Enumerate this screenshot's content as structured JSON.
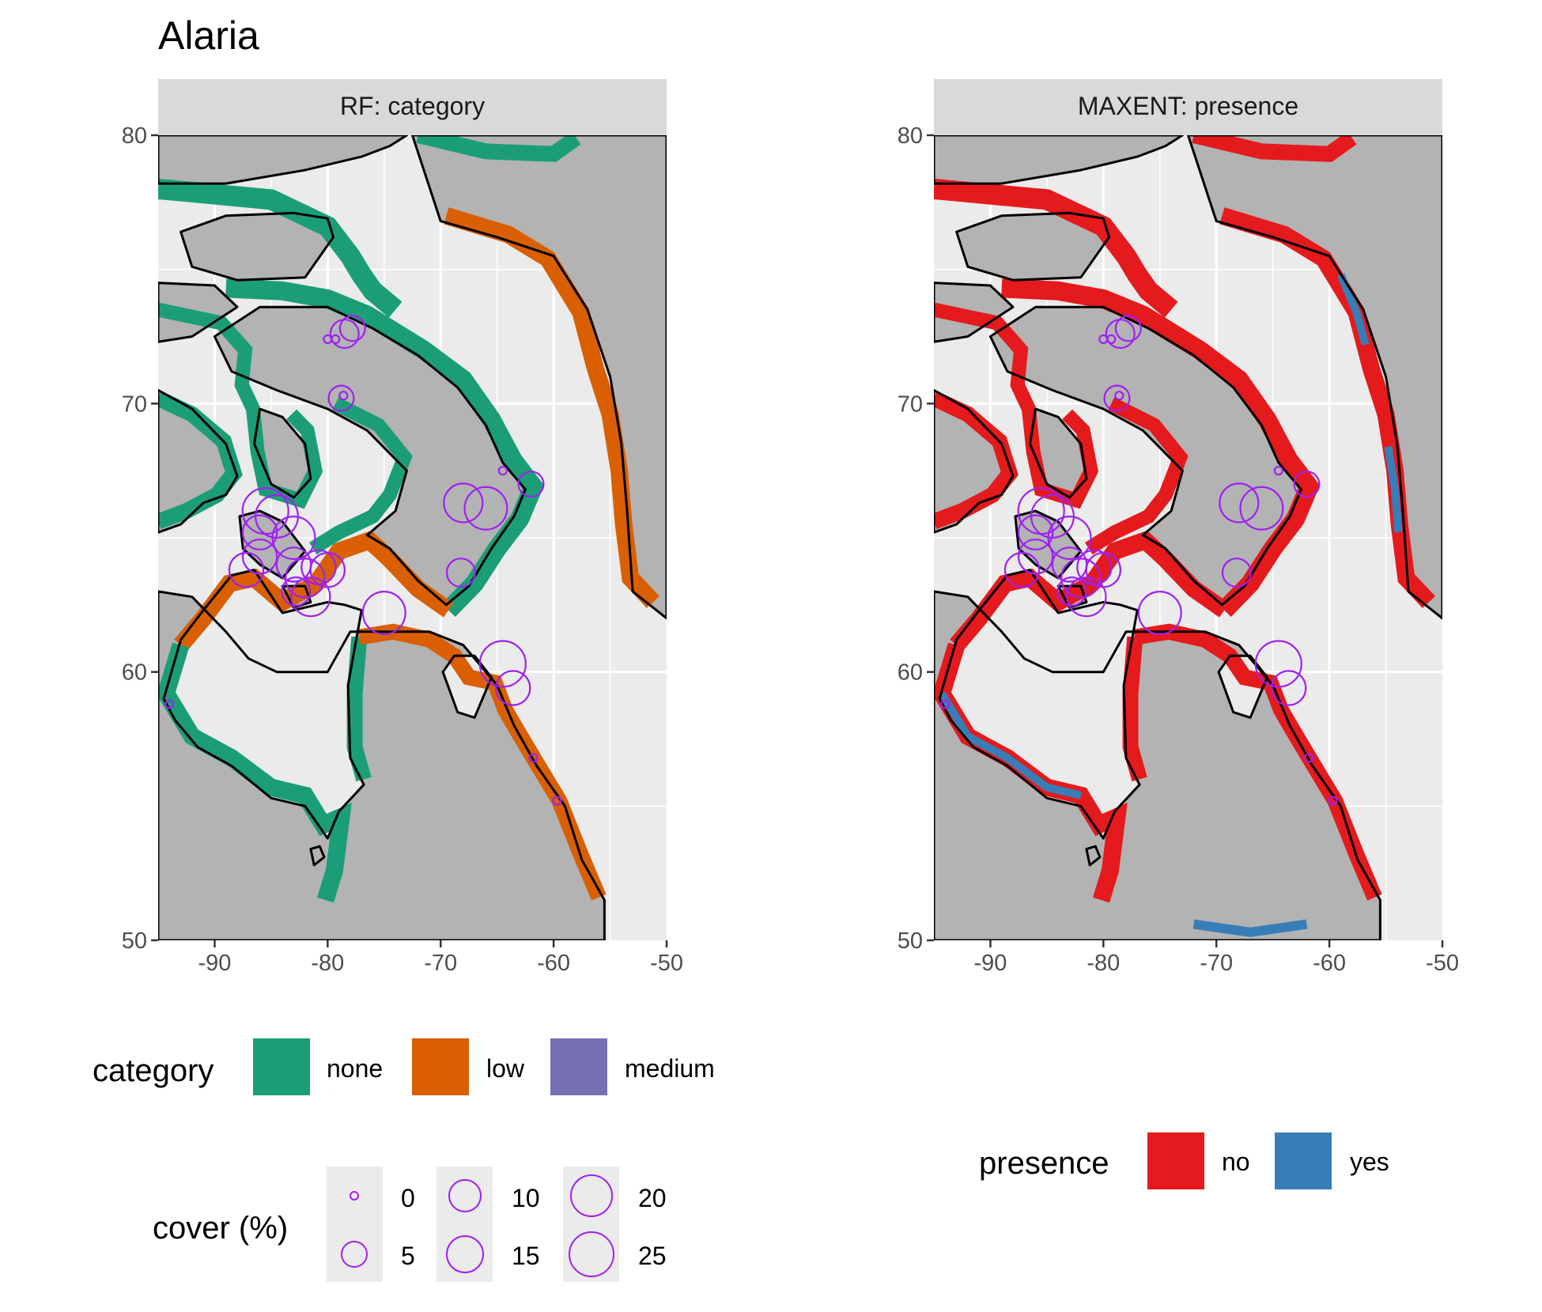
{
  "title": "Alaria",
  "panels": [
    {
      "strip_label": "RF: category",
      "fill_variable": "category"
    },
    {
      "strip_label": "MAXENT: presence",
      "fill_variable": "presence"
    }
  ],
  "axes": {
    "x_ticks": [
      "-90",
      "-80",
      "-70",
      "-60",
      "-50"
    ],
    "y_ticks": [
      "80",
      "70",
      "60",
      "50"
    ],
    "xlim": [
      -95,
      -50
    ],
    "ylim": [
      50,
      80
    ]
  },
  "legend_category": {
    "title": "category",
    "items": [
      {
        "label": "none",
        "color": "#1b9e77"
      },
      {
        "label": "low",
        "color": "#d95f02"
      },
      {
        "label": "medium",
        "color": "#7570b3"
      }
    ]
  },
  "legend_presence": {
    "title": "presence",
    "items": [
      {
        "label": "no",
        "color": "#e41a1c"
      },
      {
        "label": "yes",
        "color": "#377eb8"
      }
    ]
  },
  "legend_cover": {
    "title": "cover (%)",
    "items": [
      {
        "label": "0",
        "value": 0
      },
      {
        "label": "5",
        "value": 5
      },
      {
        "label": "10",
        "value": 10
      },
      {
        "label": "15",
        "value": 15
      },
      {
        "label": "20",
        "value": 20
      },
      {
        "label": "25",
        "value": 25
      }
    ]
  },
  "colors": {
    "land": "#b3b3b3",
    "panel_bg": "#ebebeb",
    "strip_bg": "#d9d9d9",
    "grid": "#ffffff",
    "circle": "#a020f0"
  },
  "chart_data": {
    "type": "scatter",
    "x_label": "",
    "y_label": "",
    "sites": [
      {
        "lon": -78.5,
        "lat": 72.6,
        "cover": 5
      },
      {
        "lon": -77.8,
        "lat": 72.8,
        "cover": 3
      },
      {
        "lon": -79.3,
        "lat": 72.4,
        "cover": 0
      },
      {
        "lon": -80.0,
        "lat": 72.4,
        "cover": 0
      },
      {
        "lon": -78.8,
        "lat": 70.2,
        "cover": 3
      },
      {
        "lon": -78.6,
        "lat": 70.3,
        "cover": 0
      },
      {
        "lon": -85.5,
        "lat": 66.0,
        "cover": 25
      },
      {
        "lon": -84.5,
        "lat": 65.8,
        "cover": 20
      },
      {
        "lon": -86.0,
        "lat": 65.2,
        "cover": 10
      },
      {
        "lon": -83.0,
        "lat": 65.0,
        "cover": 20
      },
      {
        "lon": -87.2,
        "lat": 63.8,
        "cover": 10
      },
      {
        "lon": -86.0,
        "lat": 64.3,
        "cover": 10
      },
      {
        "lon": -83.0,
        "lat": 64.0,
        "cover": 10
      },
      {
        "lon": -82.0,
        "lat": 63.5,
        "cover": 15
      },
      {
        "lon": -81.5,
        "lat": 62.8,
        "cover": 15
      },
      {
        "lon": -80.8,
        "lat": 63.9,
        "cover": 10
      },
      {
        "lon": -80.0,
        "lat": 63.8,
        "cover": 10
      },
      {
        "lon": -82.8,
        "lat": 63.0,
        "cover": 5
      },
      {
        "lon": -75.0,
        "lat": 62.2,
        "cover": 20
      },
      {
        "lon": -68.0,
        "lat": 66.3,
        "cover": 15
      },
      {
        "lon": -66.0,
        "lat": 66.1,
        "cover": 20
      },
      {
        "lon": -68.2,
        "lat": 63.7,
        "cover": 5
      },
      {
        "lon": -64.5,
        "lat": 67.5,
        "cover": 0
      },
      {
        "lon": -62.0,
        "lat": 67.0,
        "cover": 3
      },
      {
        "lon": -64.5,
        "lat": 60.3,
        "cover": 25
      },
      {
        "lon": -63.6,
        "lat": 59.4,
        "cover": 10
      },
      {
        "lon": -94.0,
        "lat": 58.8,
        "cover": 0
      },
      {
        "lon": -61.8,
        "lat": 56.8,
        "cover": 0
      },
      {
        "lon": -59.7,
        "lat": 55.2,
        "cover": 0
      }
    ]
  }
}
